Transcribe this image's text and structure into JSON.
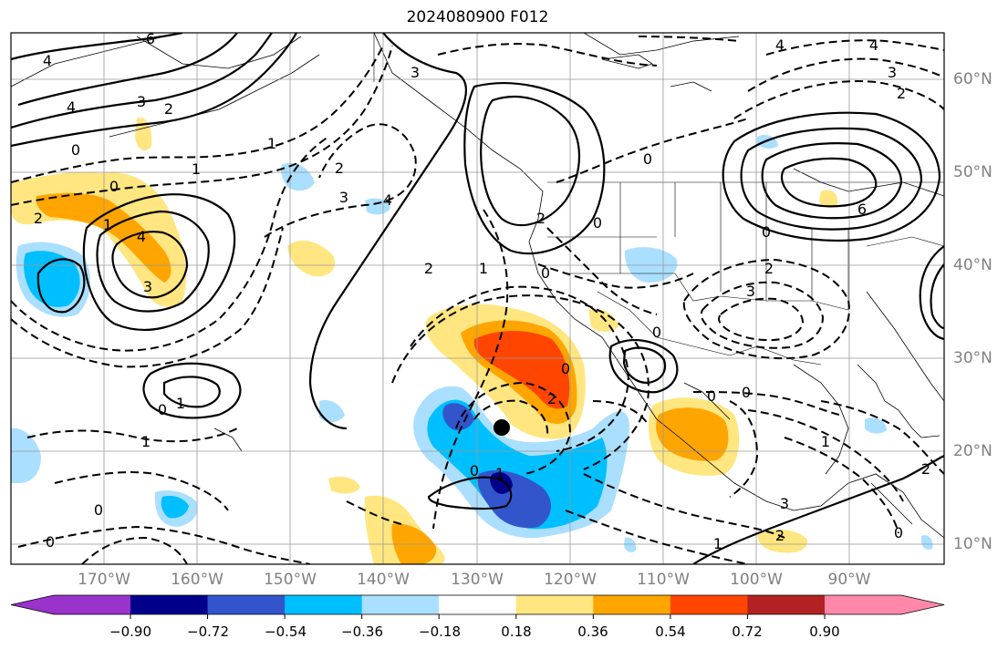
{
  "title": "2024080900 F012",
  "latitude_labels": [
    "60°N",
    "50°N",
    "40°N",
    "30°N",
    "20°N",
    "10°N"
  ],
  "longitude_labels": [
    "170°W",
    "160°W",
    "150°W",
    "140°W",
    "130°W",
    "120°W",
    "110°W",
    "100°W",
    "90°W"
  ],
  "colorbar": {
    "colors": [
      "#9933cc",
      "#00008b",
      "#3355cc",
      "#00bfff",
      "#aadfff",
      "#ffffff",
      "#ffe680",
      "#ffa500",
      "#ff4500",
      "#b22222",
      "#ff88aa"
    ],
    "tick_labels": [
      "−0.90",
      "−0.72",
      "−0.54",
      "−0.36",
      "−0.18",
      "0.18",
      "0.36",
      "0.54",
      "0.72",
      "0.90"
    ]
  },
  "contour_labels": [
    "4",
    "6",
    "4",
    "3",
    "2",
    "1",
    "0",
    "1",
    "2",
    "3",
    "3",
    "2",
    "1",
    "0",
    "4",
    "4",
    "3",
    "2",
    "0",
    "0",
    "2",
    "1",
    "0",
    "1",
    "0",
    "1",
    "0",
    "0",
    "0",
    "0",
    "1",
    "0",
    "2",
    "1",
    "2",
    "3",
    "2",
    "3",
    "4",
    "6",
    "4",
    "3",
    "2",
    "0",
    "0",
    "0",
    "1",
    "0",
    "2"
  ],
  "marker": "storm-center-dot"
}
